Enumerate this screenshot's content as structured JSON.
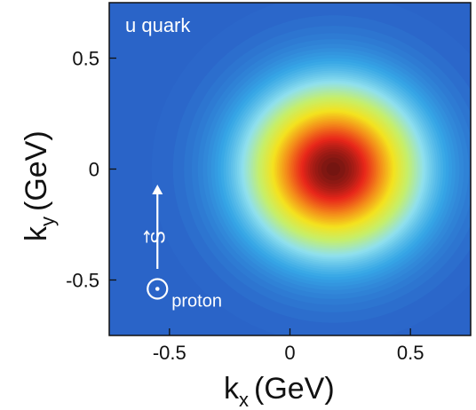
{
  "chart_data": {
    "type": "heatmap",
    "title": "u quark",
    "xlabel": {
      "main": "k",
      "sub": "x",
      "unit": "(GeV)"
    },
    "ylabel": {
      "main": "k",
      "sub": "y",
      "unit": "(GeV)"
    },
    "xlim": [
      -0.75,
      0.75
    ],
    "ylim": [
      -0.75,
      0.75
    ],
    "x_ticks": [
      -0.5,
      0,
      0.5
    ],
    "y_ticks": [
      0.5,
      0,
      -0.5
    ],
    "x_tick_labels": [
      "-0.5",
      "0",
      "0.5"
    ],
    "y_tick_labels": [
      "0.5",
      "0",
      "-0.5"
    ],
    "grid": false,
    "colormap": [
      "#2a64c8",
      "#36a6e6",
      "#8fe0ee",
      "#c6ef6a",
      "#f4e21e",
      "#f48a1a",
      "#e8261a",
      "#6e1410"
    ],
    "distribution": {
      "peak": [
        0.18,
        0.0
      ],
      "width_x": 0.24,
      "width_y": 0.25
    },
    "annotations": {
      "spin_label": "S",
      "spin_vector": {
        "from": [
          -0.55,
          -0.45
        ],
        "to": [
          -0.55,
          -0.07
        ]
      },
      "spin_symbol_at": [
        -0.55,
        -0.54
      ],
      "proton_label": "proton"
    }
  }
}
